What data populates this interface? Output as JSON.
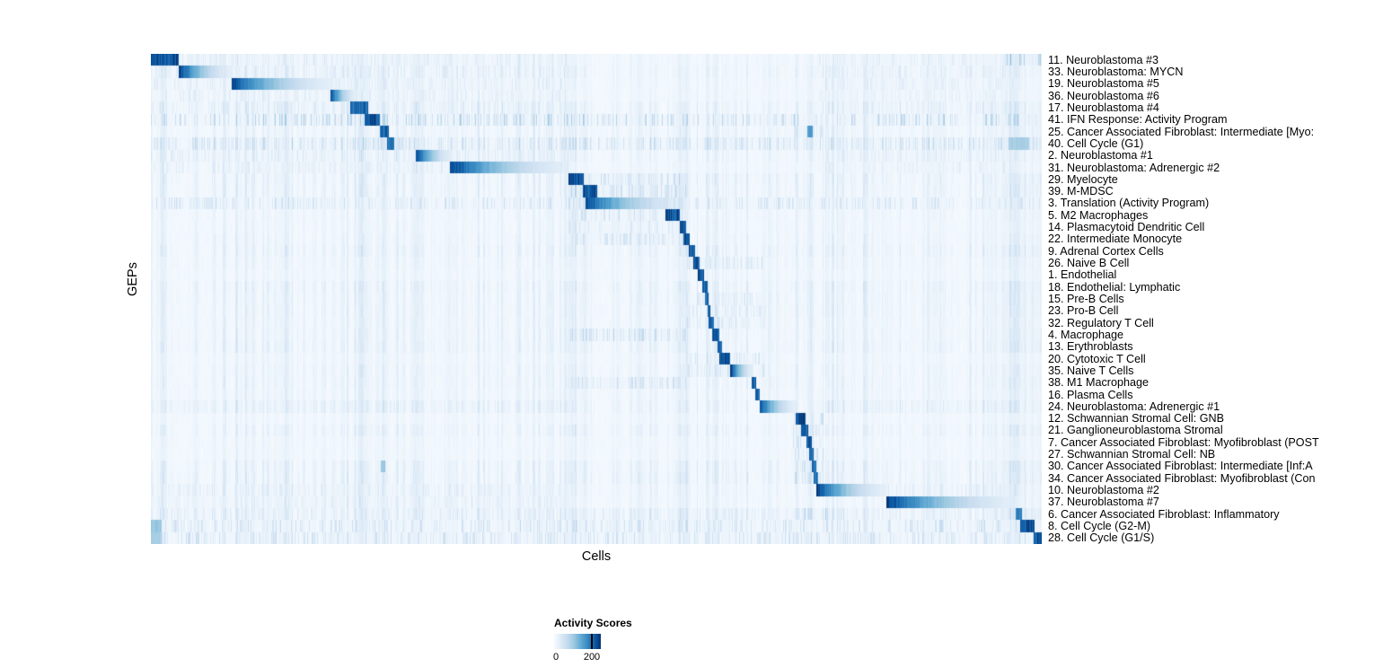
{
  "chart_data": {
    "type": "heatmap",
    "title": "",
    "xlabel": "Cells",
    "ylabel": "GEPs",
    "colormap": "Blues",
    "colors": {
      "low": "#f7fbff",
      "mid": "#6baed6",
      "high": "#08306b"
    },
    "legend": {
      "title": "Activity Scores",
      "ticks": [
        "0",
        "200"
      ],
      "value_min": 0,
      "value_max": 200
    },
    "n_rows": 41,
    "rows_note": "Each row is a GEP; columns are single cells ordered so each GEP's top-activity cells form a diagonal block. segs = [start_frac, end_frac, peak(0-1 of ~200+), gradient_fade]; halos = faint streaky cross-activity regions [start_frac, end_frac, strength]; band = faint activity across all cells.",
    "rows": [
      {
        "label": "11. Neuroblastoma #3",
        "segs": [
          [
            0.0,
            0.031,
            1,
            0
          ]
        ],
        "halos": [
          [
            0.0,
            0.468,
            0.11
          ],
          [
            0.745,
            0.972,
            0.09
          ],
          [
            0.955,
            1.0,
            0.3
          ]
        ]
      },
      {
        "label": "33. Neuroblastoma: MYCN",
        "segs": [
          [
            0.031,
            0.09,
            1,
            1
          ]
        ],
        "halos": [
          [
            0.0,
            0.468,
            0.11
          ],
          [
            0.745,
            0.972,
            0.09
          ]
        ]
      },
      {
        "label": "19. Neuroblastoma #5",
        "segs": [
          [
            0.09,
            0.205,
            0.98,
            1
          ]
        ],
        "halos": [
          [
            0.0,
            0.468,
            0.11
          ],
          [
            0.745,
            0.972,
            0.09
          ]
        ]
      },
      {
        "label": "36. Neuroblastoma #6",
        "segs": [
          [
            0.201,
            0.231,
            0.95,
            1
          ]
        ],
        "halos": [
          [
            0.0,
            0.468,
            0.1
          ],
          [
            0.745,
            0.972,
            0.08
          ]
        ]
      },
      {
        "label": "17. Neuroblastoma #4",
        "segs": [
          [
            0.223,
            0.243,
            0.92,
            0
          ]
        ],
        "halos": [
          [
            0.0,
            0.468,
            0.1
          ],
          [
            0.745,
            0.972,
            0.08
          ]
        ]
      },
      {
        "label": "41. IFN Response: Activity Program",
        "segs": [
          [
            0.239,
            0.257,
            1,
            0
          ]
        ],
        "band": 0.45
      },
      {
        "label": "25. Cancer Associated Fibroblast: Intermediate [Myo:",
        "segs": [
          [
            0.257,
            0.267,
            0.95,
            0
          ],
          [
            0.736,
            0.742,
            0.75,
            0
          ]
        ],
        "halos": [
          [
            0.72,
            0.755,
            0.18
          ]
        ]
      },
      {
        "label": "40. Cell Cycle (G1)",
        "segs": [
          [
            0.265,
            0.273,
            0.9,
            0
          ],
          [
            0.962,
            0.985,
            0.45,
            0
          ]
        ],
        "band": 0.3
      },
      {
        "label": "2. Neuroblastoma #1",
        "segs": [
          [
            0.297,
            0.338,
            1,
            1
          ]
        ],
        "halos": [
          [
            0.0,
            0.468,
            0.11
          ],
          [
            0.745,
            0.972,
            0.09
          ]
        ]
      },
      {
        "label": "31. Neuroblastoma: Adrenergic #2",
        "segs": [
          [
            0.335,
            0.468,
            1,
            1
          ]
        ],
        "halos": [
          [
            0.0,
            0.468,
            0.11
          ],
          [
            0.745,
            0.972,
            0.09
          ]
        ]
      },
      {
        "label": "29. Myelocyte",
        "segs": [
          [
            0.468,
            0.485,
            1,
            0
          ]
        ],
        "halos": [
          [
            0.468,
            0.6,
            0.2
          ]
        ]
      },
      {
        "label": "39. M-MDSC",
        "segs": [
          [
            0.484,
            0.5,
            1,
            0
          ]
        ],
        "halos": [
          [
            0.468,
            0.6,
            0.2
          ]
        ]
      },
      {
        "label": "3. Translation (Activity Program)",
        "segs": [
          [
            0.487,
            0.6,
            0.95,
            1
          ]
        ],
        "halos": [
          [
            0.468,
            0.6,
            0.18
          ]
        ],
        "band": 0.28
      },
      {
        "label": "5. M2 Macrophages",
        "segs": [
          [
            0.577,
            0.593,
            1,
            0
          ]
        ],
        "halos": [
          [
            0.468,
            0.6,
            0.2
          ]
        ]
      },
      {
        "label": "14. Plasmacytoid Dendritic Cell",
        "segs": [
          [
            0.593,
            0.6,
            1,
            0
          ]
        ],
        "halos": [
          [
            0.468,
            0.6,
            0.12
          ]
        ]
      },
      {
        "label": "22. Intermediate Monocyte",
        "segs": [
          [
            0.597,
            0.604,
            1,
            0
          ]
        ],
        "halos": [
          [
            0.468,
            0.6,
            0.18
          ]
        ]
      },
      {
        "label": "9. Adrenal Cortex Cells",
        "segs": [
          [
            0.603,
            0.61,
            1,
            0
          ]
        ]
      },
      {
        "label": "26. Naive B Cell",
        "segs": [
          [
            0.608,
            0.615,
            1,
            0
          ]
        ],
        "halos": [
          [
            0.6,
            0.69,
            0.13
          ]
        ]
      },
      {
        "label": "1. Endothelial",
        "segs": [
          [
            0.613,
            0.62,
            1,
            0
          ]
        ]
      },
      {
        "label": "18. Endothelial: Lymphatic",
        "segs": [
          [
            0.618,
            0.624,
            0.95,
            0
          ]
        ]
      },
      {
        "label": "15. Pre-B Cells",
        "segs": [
          [
            0.621,
            0.626,
            0.95,
            0
          ]
        ],
        "halos": [
          [
            0.6,
            0.69,
            0.12
          ]
        ]
      },
      {
        "label": "23. Pro-B Cell",
        "segs": [
          [
            0.624,
            0.628,
            0.95,
            0
          ]
        ],
        "halos": [
          [
            0.6,
            0.69,
            0.12
          ]
        ]
      },
      {
        "label": "32. Regulatory T Cell",
        "segs": [
          [
            0.626,
            0.632,
            0.95,
            0
          ]
        ],
        "halos": [
          [
            0.6,
            0.69,
            0.14
          ]
        ]
      },
      {
        "label": "4. Macrophage",
        "segs": [
          [
            0.63,
            0.638,
            1,
            0
          ]
        ],
        "halos": [
          [
            0.468,
            0.6,
            0.22
          ]
        ]
      },
      {
        "label": "13. Erythroblasts",
        "segs": [
          [
            0.636,
            0.641,
            0.95,
            0
          ]
        ]
      },
      {
        "label": "20. Cytotoxic T Cell",
        "segs": [
          [
            0.638,
            0.65,
            1,
            0
          ]
        ],
        "halos": [
          [
            0.6,
            0.69,
            0.16
          ]
        ]
      },
      {
        "label": "35. Naive T Cells",
        "segs": [
          [
            0.65,
            0.676,
            1,
            1
          ]
        ],
        "halos": [
          [
            0.6,
            0.69,
            0.16
          ]
        ]
      },
      {
        "label": "38. M1 Macrophage",
        "segs": [
          [
            0.674,
            0.679,
            0.95,
            0
          ]
        ],
        "halos": [
          [
            0.468,
            0.6,
            0.2
          ]
        ]
      },
      {
        "label": "16. Plasma Cells",
        "segs": [
          [
            0.678,
            0.683,
            0.95,
            0
          ]
        ]
      },
      {
        "label": "24. Neuroblastoma: Adrenergic #1",
        "segs": [
          [
            0.683,
            0.724,
            0.95,
            1
          ]
        ],
        "halos": [
          [
            0.0,
            0.468,
            0.08
          ],
          [
            0.745,
            0.972,
            0.08
          ]
        ]
      },
      {
        "label": "12. Schwannian Stromal Cell: GNB",
        "segs": [
          [
            0.723,
            0.734,
            1,
            0
          ]
        ],
        "halos": [
          [
            0.72,
            0.755,
            0.2
          ]
        ]
      },
      {
        "label": "21. Ganglioneuroblastoma Stromal",
        "segs": [
          [
            0.729,
            0.737,
            0.95,
            0
          ]
        ],
        "halos": [
          [
            0.72,
            0.755,
            0.2
          ]
        ]
      },
      {
        "label": "7. Cancer Associated Fibroblast: Myofibroblast (POST",
        "segs": [
          [
            0.735,
            0.741,
            0.95,
            0
          ]
        ],
        "halos": [
          [
            0.72,
            0.755,
            0.2
          ]
        ]
      },
      {
        "label": "27. Schwannian Stromal Cell: NB",
        "segs": [
          [
            0.738,
            0.743,
            0.9,
            0
          ]
        ],
        "halos": [
          [
            0.72,
            0.755,
            0.18
          ]
        ]
      },
      {
        "label": "30. Cancer Associated Fibroblast: Intermediate [Inf:A",
        "segs": [
          [
            0.741,
            0.746,
            0.9,
            0
          ],
          [
            0.258,
            0.263,
            0.5,
            0
          ]
        ],
        "halos": [
          [
            0.72,
            0.755,
            0.18
          ]
        ]
      },
      {
        "label": "34. Cancer Associated Fibroblast: Myofibroblast (Con",
        "segs": [
          [
            0.743,
            0.748,
            0.9,
            0
          ]
        ],
        "halos": [
          [
            0.72,
            0.755,
            0.18
          ]
        ]
      },
      {
        "label": "10. Neuroblastoma #2",
        "segs": [
          [
            0.746,
            0.825,
            1,
            1
          ]
        ],
        "halos": [
          [
            0.0,
            0.468,
            0.09
          ],
          [
            0.825,
            0.972,
            0.1
          ]
        ]
      },
      {
        "label": "37. Neuroblastoma #7",
        "segs": [
          [
            0.825,
            0.972,
            1,
            1
          ]
        ],
        "halos": [
          [
            0.0,
            0.468,
            0.09
          ]
        ]
      },
      {
        "label": "6. Cancer Associated Fibroblast: Inflammatory",
        "segs": [
          [
            0.97,
            0.977,
            0.8,
            0
          ]
        ],
        "halos": [
          [
            0.72,
            0.76,
            0.25
          ]
        ],
        "band": 0.15
      },
      {
        "label": "8. Cell Cycle (G2-M)",
        "segs": [
          [
            0.975,
            0.991,
            1,
            0
          ],
          [
            0.0,
            0.012,
            0.5,
            0
          ]
        ],
        "band": 0.3
      },
      {
        "label": "28. Cell Cycle (G1/S)",
        "segs": [
          [
            0.99,
            1.0,
            1,
            0
          ],
          [
            0.0,
            0.012,
            0.45,
            0
          ]
        ],
        "band": 0.3
      }
    ],
    "column_streaks": [
      {
        "pos": 0.05,
        "width": 0.004,
        "strength": 0.1
      },
      {
        "pos": 0.1,
        "width": 0.003,
        "strength": 0.09
      },
      {
        "pos": 0.155,
        "width": 0.003,
        "strength": 0.09
      },
      {
        "pos": 0.205,
        "width": 0.004,
        "strength": 0.12
      },
      {
        "pos": 0.237,
        "width": 0.012,
        "strength": 0.22
      },
      {
        "pos": 0.26,
        "width": 0.005,
        "strength": 0.14
      },
      {
        "pos": 0.3,
        "width": 0.004,
        "strength": 0.13
      },
      {
        "pos": 0.47,
        "width": 0.01,
        "strength": 0.18
      },
      {
        "pos": 0.487,
        "width": 0.006,
        "strength": 0.14
      },
      {
        "pos": 0.595,
        "width": 0.01,
        "strength": 0.2
      },
      {
        "pos": 0.632,
        "width": 0.004,
        "strength": 0.14
      },
      {
        "pos": 0.74,
        "width": 0.005,
        "strength": 0.26
      },
      {
        "pos": 0.77,
        "width": 0.003,
        "strength": 0.1
      },
      {
        "pos": 0.968,
        "width": 0.018,
        "strength": 0.26
      }
    ]
  }
}
